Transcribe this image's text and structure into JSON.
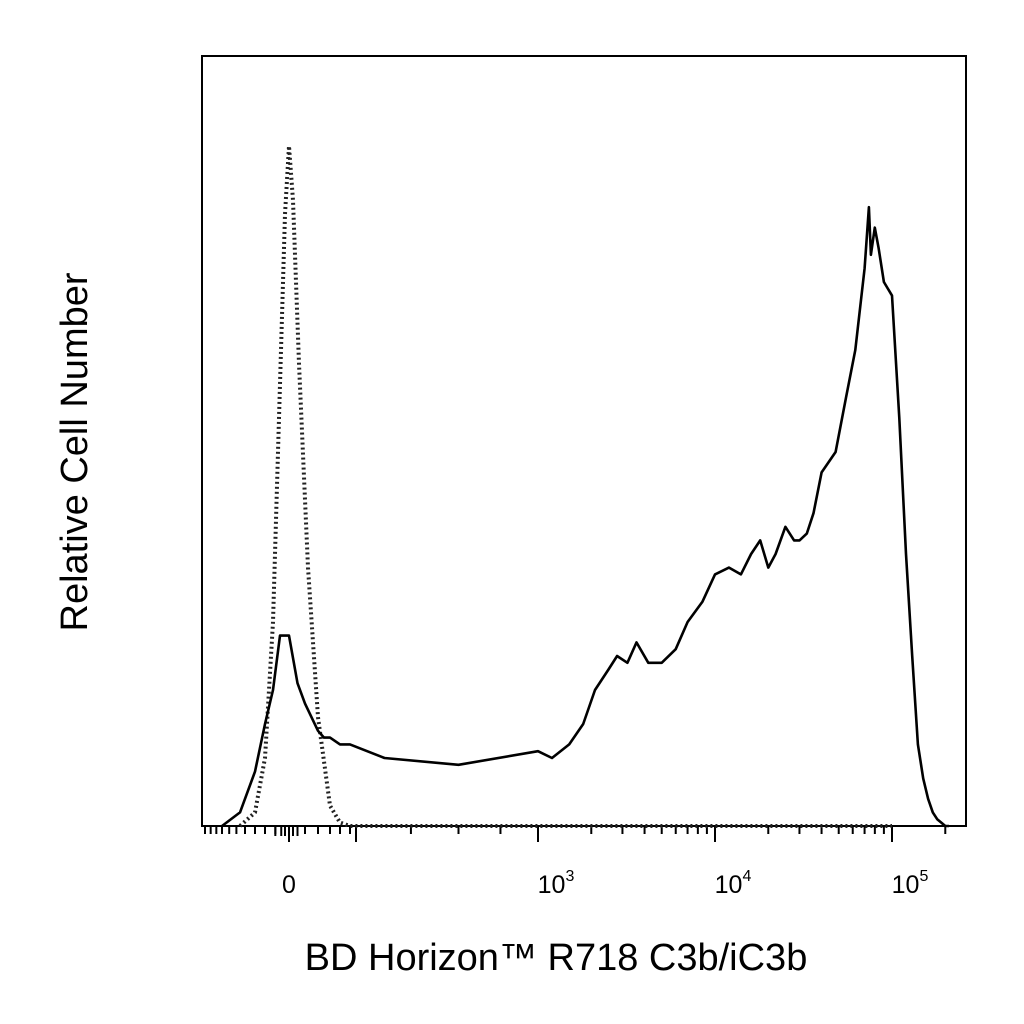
{
  "chart_data": {
    "type": "area",
    "xlabel": "BD Horizon™ R718 C3b/iC3b",
    "ylabel": "Relative Cell Number",
    "x_scale": "biexponential",
    "x_tick_labels": [
      {
        "base": "0",
        "exp": ""
      },
      {
        "base": "10",
        "exp": "3"
      },
      {
        "base": "10",
        "exp": "4"
      },
      {
        "base": "10",
        "exp": "5"
      }
    ],
    "y_ticks": "none",
    "grid": false,
    "legend": "none",
    "series": [
      {
        "style": "dotted",
        "color": "#222222",
        "x": [
          -450,
          -300,
          -200,
          -120,
          -60,
          -20,
          0,
          20,
          60,
          120,
          200,
          300,
          400,
          500,
          600,
          1000,
          100000
        ],
        "y": [
          0,
          2,
          10,
          30,
          65,
          90,
          100,
          92,
          68,
          38,
          16,
          3,
          0.5,
          0,
          0,
          0,
          0
        ]
      },
      {
        "style": "solid",
        "color": "#000000",
        "x": [
          -700,
          -450,
          -300,
          -200,
          -120,
          -60,
          0,
          50,
          100,
          200,
          250,
          300,
          400,
          500,
          650,
          800,
          1000,
          1200,
          1500,
          1800,
          2100,
          2500,
          2800,
          3200,
          3600,
          4200,
          5000,
          6000,
          7000,
          8500,
          10000,
          12000,
          14000,
          16000,
          18000,
          20000,
          22000,
          25000,
          28000,
          30000,
          33000,
          36000,
          40000,
          48000,
          55000,
          62000,
          70000,
          74000,
          76000,
          80000,
          84000,
          90000,
          100000,
          110000,
          120000,
          130000,
          140000,
          150000,
          160000,
          170000,
          180000,
          190000,
          200000,
          210000
        ],
        "y": [
          0,
          2,
          8,
          15,
          20,
          28,
          28,
          21,
          18,
          14,
          13,
          13,
          12,
          12,
          10,
          9,
          11,
          10,
          12,
          15,
          20,
          23,
          25,
          24,
          27,
          24,
          24,
          26,
          30,
          33,
          37,
          38,
          37,
          40,
          42,
          38,
          40,
          44,
          42,
          42,
          43,
          46,
          52,
          55,
          63,
          70,
          82,
          91,
          84,
          88,
          85,
          80,
          78,
          60,
          40,
          25,
          12,
          7,
          4,
          2,
          1,
          0.5,
          0,
          0
        ]
      }
    ]
  }
}
